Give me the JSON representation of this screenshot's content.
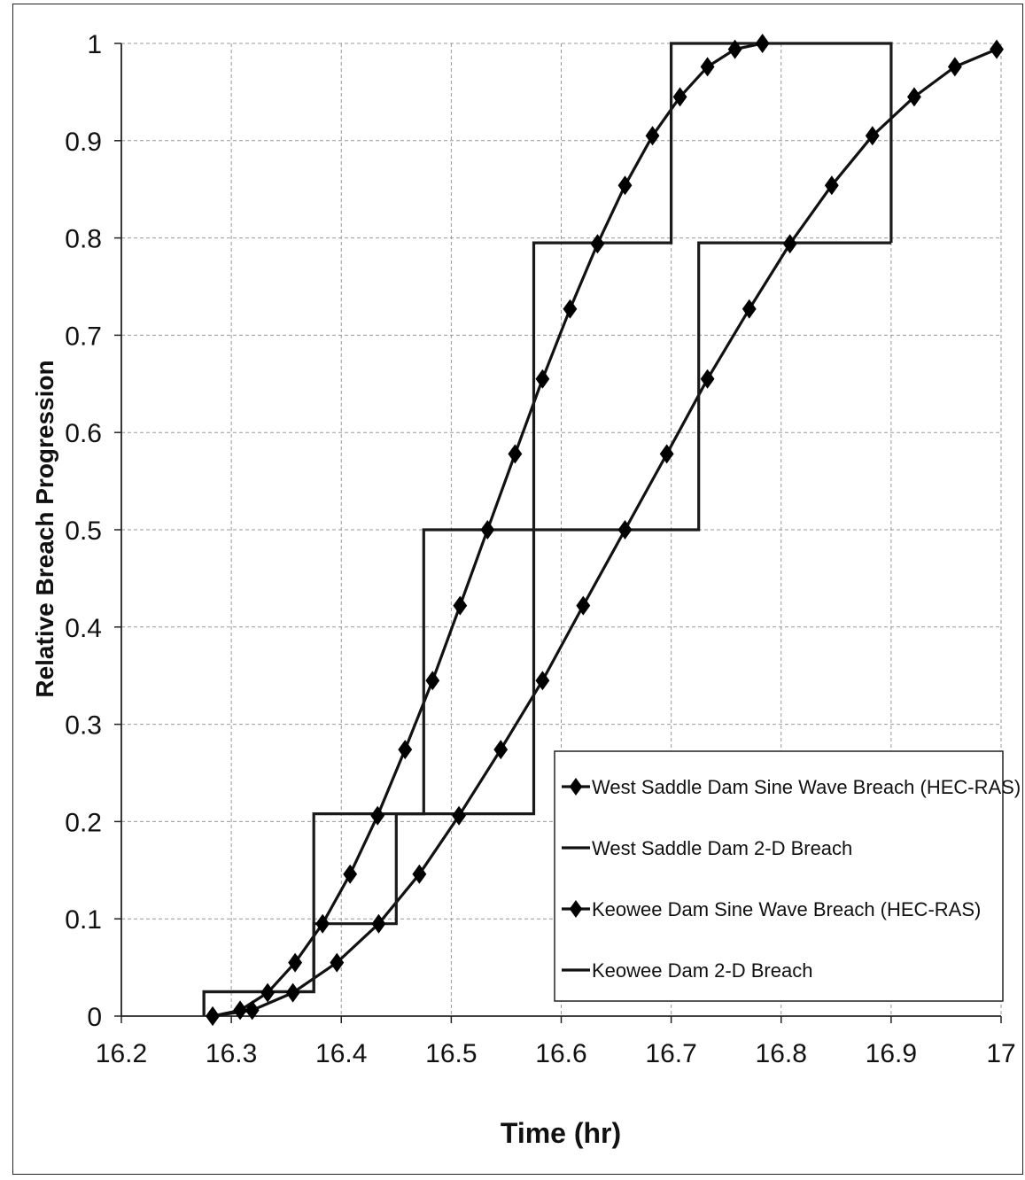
{
  "chart_data": {
    "type": "line",
    "title": "",
    "xlabel": "Time (hr)",
    "ylabel": "Relative Breach Progression",
    "xlim": [
      16.2,
      17
    ],
    "ylim": [
      0,
      1
    ],
    "x_ticks": [
      "16.2",
      "16.3",
      "16.4",
      "16.5",
      "16.6",
      "16.7",
      "16.8",
      "16.9",
      "17"
    ],
    "y_ticks": [
      "0",
      "0.1",
      "0.2",
      "0.3",
      "0.4",
      "0.5",
      "0.6",
      "0.7",
      "0.8",
      "0.9",
      "1"
    ],
    "grid": true,
    "legend_position": "bottom-right",
    "series": [
      {
        "name": "West Saddle Dam Sine Wave Breach (HEC-RAS)",
        "style": "line-diamond",
        "x": [
          16.283,
          16.308,
          16.333,
          16.358,
          16.383,
          16.408,
          16.433,
          16.458,
          16.483,
          16.508,
          16.533,
          16.558,
          16.583,
          16.608,
          16.633,
          16.658,
          16.683,
          16.708,
          16.733,
          16.758,
          16.783
        ],
        "y": [
          0.0,
          0.006,
          0.024,
          0.055,
          0.095,
          0.146,
          0.206,
          0.274,
          0.345,
          0.422,
          0.5,
          0.578,
          0.655,
          0.727,
          0.794,
          0.854,
          0.905,
          0.945,
          0.976,
          0.994,
          1.0
        ]
      },
      {
        "name": "West Saddle Dam 2-D Breach",
        "style": "step",
        "x": [
          16.275,
          16.275,
          16.375,
          16.375,
          16.475,
          16.475,
          16.575,
          16.575,
          16.7,
          16.7,
          16.9,
          16.9
        ],
        "y": [
          0,
          0.025,
          0.025,
          0.208,
          0.208,
          0.5,
          0.5,
          0.795,
          0.795,
          1.0,
          1.0,
          0.795
        ]
      },
      {
        "name": "Keowee Dam Sine Wave Breach (HEC-RAS)",
        "style": "line-diamond",
        "x": [
          16.283,
          16.319,
          16.356,
          16.396,
          16.434,
          16.471,
          16.507,
          16.545,
          16.583,
          16.62,
          16.658,
          16.696,
          16.733,
          16.771,
          16.808,
          16.846,
          16.883,
          16.921,
          16.958,
          16.996
        ],
        "y": [
          0.0,
          0.006,
          0.024,
          0.055,
          0.095,
          0.146,
          0.206,
          0.274,
          0.345,
          0.422,
          0.5,
          0.578,
          0.655,
          0.727,
          0.794,
          0.854,
          0.905,
          0.945,
          0.976,
          0.994
        ]
      },
      {
        "name": "Keowee Dam 2-D Breach",
        "style": "step",
        "x": [
          16.275,
          16.275,
          16.375,
          16.375,
          16.45,
          16.45,
          16.575,
          16.575,
          16.725,
          16.725,
          16.9
        ],
        "y": [
          0,
          0.025,
          0.025,
          0.095,
          0.095,
          0.208,
          0.208,
          0.5,
          0.5,
          0.795,
          0.795
        ]
      }
    ]
  }
}
